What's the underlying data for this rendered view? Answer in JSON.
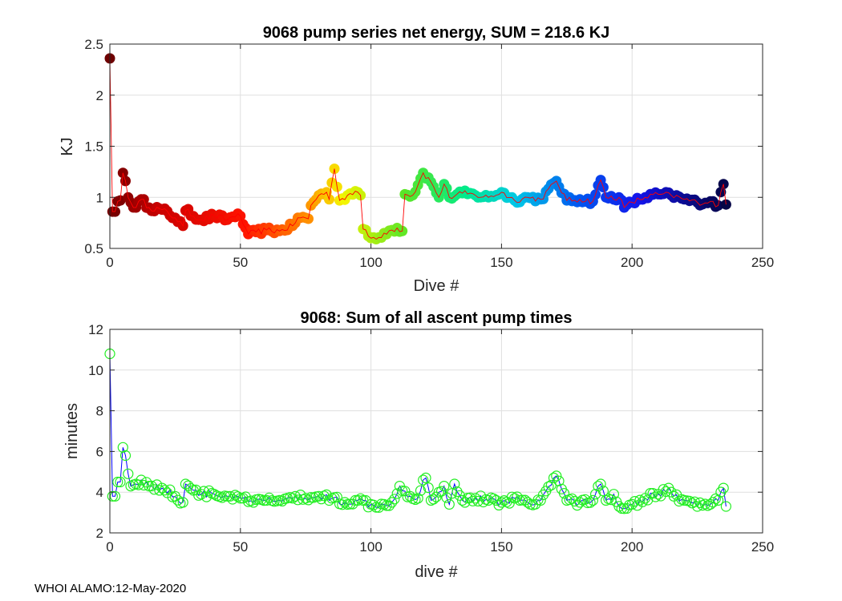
{
  "footer": "WHOI ALAMO:12-May-2020",
  "chart_data": [
    {
      "type": "line",
      "title": "9068 pump series net energy, SUM = 218.6 KJ",
      "xlabel": "Dive #",
      "ylabel": "KJ",
      "xlim": [
        0,
        250
      ],
      "ylim": [
        0.5,
        2.5
      ],
      "xticks": [
        0,
        50,
        100,
        150,
        200,
        250
      ],
      "yticks": [
        0.5,
        1,
        1.5,
        2,
        2.5
      ],
      "grid": true,
      "line_color": "#ff0000",
      "marker_style": "filled circles colored by dive number (dark red to red, orange, yellow, green, cyan, blue, dark navy)",
      "anchors": [
        [
          0,
          2.36
        ],
        [
          1,
          0.86
        ],
        [
          2,
          0.86
        ],
        [
          3,
          0.96
        ],
        [
          4,
          0.97
        ],
        [
          5,
          1.24
        ],
        [
          6,
          1.16
        ],
        [
          7,
          1.0
        ],
        [
          8,
          0.95
        ],
        [
          10,
          0.9
        ],
        [
          12,
          0.98
        ],
        [
          15,
          0.9
        ],
        [
          20,
          0.88
        ],
        [
          25,
          0.8
        ],
        [
          28,
          0.72
        ],
        [
          29,
          0.87
        ],
        [
          35,
          0.78
        ],
        [
          40,
          0.82
        ],
        [
          45,
          0.78
        ],
        [
          49,
          0.84
        ],
        [
          52,
          0.7
        ],
        [
          53,
          0.64
        ],
        [
          56,
          0.66
        ],
        [
          60,
          0.68
        ],
        [
          65,
          0.67
        ],
        [
          70,
          0.72
        ],
        [
          72,
          0.8
        ],
        [
          76,
          0.79
        ],
        [
          77,
          0.92
        ],
        [
          80,
          1.02
        ],
        [
          83,
          1.05
        ],
        [
          84,
          0.98
        ],
        [
          86,
          1.28
        ],
        [
          88,
          0.97
        ],
        [
          91,
          1.02
        ],
        [
          94,
          1.06
        ],
        [
          96,
          1.02
        ],
        [
          97,
          0.69
        ],
        [
          99,
          0.62
        ],
        [
          102,
          0.59
        ],
        [
          105,
          0.65
        ],
        [
          108,
          0.68
        ],
        [
          110,
          0.7
        ],
        [
          112,
          0.67
        ],
        [
          113,
          1.03
        ],
        [
          116,
          1.02
        ],
        [
          118,
          1.12
        ],
        [
          120,
          1.24
        ],
        [
          123,
          1.15
        ],
        [
          126,
          1.0
        ],
        [
          128,
          1.13
        ],
        [
          130,
          1.0
        ],
        [
          135,
          1.04
        ],
        [
          140,
          1.02
        ],
        [
          145,
          1.0
        ],
        [
          150,
          1.05
        ],
        [
          155,
          0.97
        ],
        [
          160,
          1.0
        ],
        [
          165,
          0.98
        ],
        [
          171,
          1.16
        ],
        [
          175,
          0.97
        ],
        [
          180,
          0.98
        ],
        [
          185,
          0.96
        ],
        [
          188,
          1.17
        ],
        [
          190,
          1.0
        ],
        [
          195,
          1.0
        ],
        [
          197,
          0.9
        ],
        [
          200,
          0.95
        ],
        [
          205,
          1.0
        ],
        [
          210,
          1.03
        ],
        [
          215,
          1.02
        ],
        [
          220,
          0.98
        ],
        [
          225,
          0.95
        ],
        [
          230,
          0.96
        ],
        [
          233,
          0.92
        ],
        [
          235,
          1.13
        ],
        [
          236,
          0.93
        ]
      ],
      "n_points": 237
    },
    {
      "type": "line",
      "title": "9068: Sum of all ascent pump times",
      "xlabel": "dive #",
      "ylabel": "minutes",
      "xlim": [
        0,
        250
      ],
      "ylim": [
        2,
        12
      ],
      "xticks": [
        0,
        50,
        100,
        150,
        200,
        250
      ],
      "yticks": [
        2,
        4,
        6,
        8,
        10,
        12
      ],
      "grid": true,
      "line_color": "#0000ff",
      "marker_color": "#22ee22",
      "marker_style": "open circles",
      "anchors": [
        [
          0,
          10.8
        ],
        [
          1,
          3.8
        ],
        [
          2,
          3.8
        ],
        [
          3,
          4.5
        ],
        [
          4,
          4.5
        ],
        [
          5,
          6.2
        ],
        [
          6,
          5.8
        ],
        [
          7,
          4.9
        ],
        [
          8,
          4.3
        ],
        [
          10,
          4.4
        ],
        [
          12,
          4.6
        ],
        [
          15,
          4.3
        ],
        [
          20,
          4.2
        ],
        [
          25,
          3.8
        ],
        [
          28,
          3.5
        ],
        [
          29,
          4.4
        ],
        [
          35,
          3.9
        ],
        [
          40,
          3.9
        ],
        [
          45,
          3.8
        ],
        [
          50,
          3.7
        ],
        [
          55,
          3.5
        ],
        [
          60,
          3.6
        ],
        [
          65,
          3.6
        ],
        [
          70,
          3.7
        ],
        [
          75,
          3.7
        ],
        [
          80,
          3.8
        ],
        [
          85,
          3.7
        ],
        [
          90,
          3.5
        ],
        [
          95,
          3.6
        ],
        [
          100,
          3.4
        ],
        [
          105,
          3.4
        ],
        [
          108,
          3.5
        ],
        [
          111,
          4.3
        ],
        [
          115,
          3.8
        ],
        [
          118,
          3.7
        ],
        [
          120,
          4.6
        ],
        [
          121,
          4.7
        ],
        [
          123,
          3.6
        ],
        [
          126,
          4.0
        ],
        [
          128,
          4.3
        ],
        [
          130,
          3.4
        ],
        [
          132,
          4.4
        ],
        [
          135,
          3.6
        ],
        [
          140,
          3.7
        ],
        [
          145,
          3.6
        ],
        [
          150,
          3.5
        ],
        [
          155,
          3.7
        ],
        [
          160,
          3.5
        ],
        [
          165,
          3.6
        ],
        [
          171,
          4.8
        ],
        [
          175,
          3.6
        ],
        [
          180,
          3.5
        ],
        [
          185,
          3.6
        ],
        [
          188,
          4.4
        ],
        [
          190,
          3.6
        ],
        [
          193,
          3.9
        ],
        [
          196,
          3.2
        ],
        [
          198,
          3.2
        ],
        [
          200,
          3.4
        ],
        [
          205,
          3.7
        ],
        [
          210,
          3.9
        ],
        [
          214,
          4.2
        ],
        [
          216,
          3.8
        ],
        [
          220,
          3.6
        ],
        [
          225,
          3.3
        ],
        [
          230,
          3.4
        ],
        [
          233,
          3.6
        ],
        [
          235,
          4.2
        ],
        [
          236,
          3.3
        ]
      ],
      "n_points": 237
    }
  ]
}
